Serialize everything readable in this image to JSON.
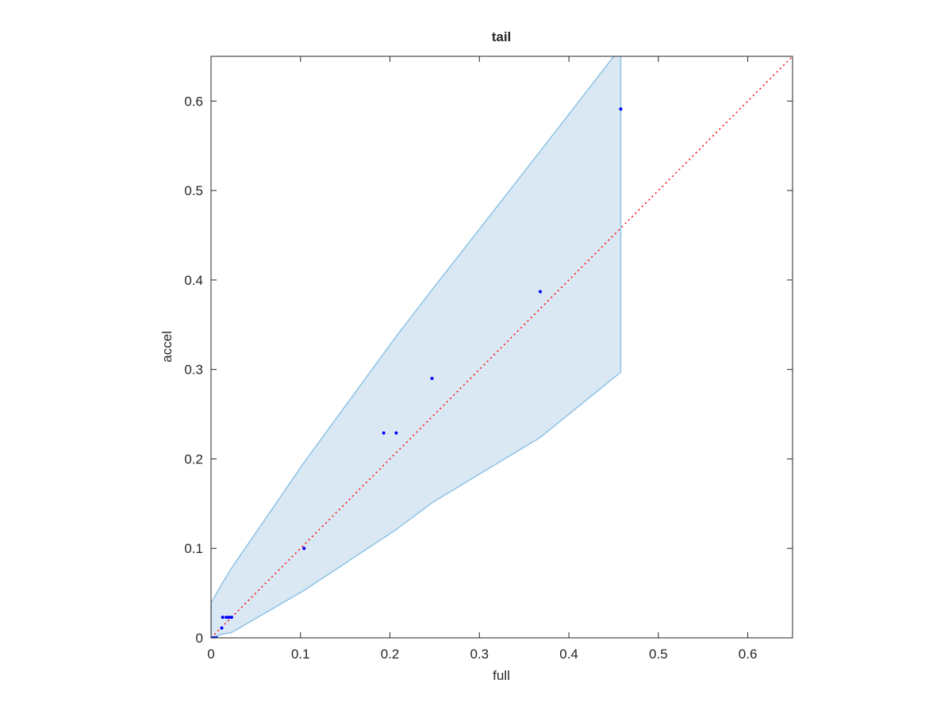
{
  "chart_data": {
    "type": "scatter",
    "title": "tail",
    "xlabel": "full",
    "ylabel": "accel",
    "xlim": [
      0,
      0.65
    ],
    "ylim": [
      0,
      0.65
    ],
    "xticks": [
      0,
      0.1,
      0.2,
      0.3,
      0.4,
      0.5,
      0.6
    ],
    "yticks": [
      0,
      0.1,
      0.2,
      0.3,
      0.4,
      0.5,
      0.6
    ],
    "grid": false,
    "band": {
      "color": "#8dc3e5",
      "fill": "#dae8f4",
      "x": [
        0,
        0.012,
        0.023,
        0.104,
        0.207,
        0.247,
        0.368,
        0.458
      ],
      "upper": [
        0.039,
        0.06,
        0.078,
        0.196,
        0.337,
        0.389,
        0.544,
        0.66
      ],
      "lower": [
        0,
        0.004,
        0.006,
        0.053,
        0.121,
        0.151,
        0.224,
        0.297
      ]
    },
    "reference_line": {
      "color": "#ff0000",
      "style": "dotted",
      "x": [
        0,
        0.65
      ],
      "y": [
        0,
        0.65
      ]
    },
    "series": [
      {
        "color": "#0000ff",
        "x": [
          0,
          0.003,
          0.006,
          0.012,
          0.013,
          0.017,
          0.02,
          0.023,
          0.104,
          0.193,
          0.207,
          0.247,
          0.368,
          0.458
        ],
        "values": [
          0,
          0,
          0,
          0.011,
          0.023,
          0.023,
          0.023,
          0.023,
          0.1,
          0.229,
          0.229,
          0.29,
          0.387,
          0.591
        ]
      }
    ]
  }
}
